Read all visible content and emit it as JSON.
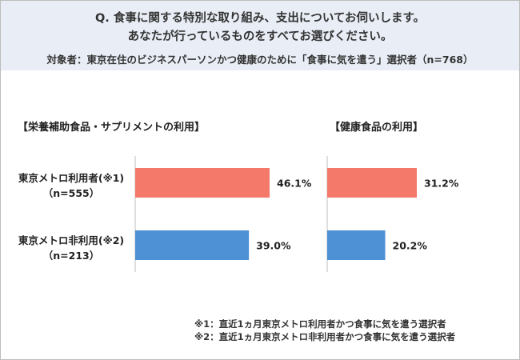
{
  "header": {
    "question_line1": "Q. 食事に関する特別な取り組み、支出についてお伺いします。",
    "question_line2": "あなたが行っているものをすべてお選びください。",
    "target": "対象者：東京在住のビジネスパーソンかつ健康のために「食事に気を遣う」選択者（n=768）"
  },
  "rows": [
    {
      "label": "東京メトロ利用者(※1)",
      "n": "（n=555）"
    },
    {
      "label": "東京メトロ非利用(※2)",
      "n": "（n=213）"
    }
  ],
  "notes": [
    "※1：直近1ヵ月東京メトロ利用者かつ食事に気を遣う選択者",
    "※2：直近1ヵ月東京メトロ非利用者かつ食事に気を遣う選択者"
  ],
  "colors": {
    "series1": "#f4796b",
    "series2": "#4e91d4",
    "header_bg": "#e9eef6"
  },
  "chart_data": [
    {
      "type": "bar",
      "title": "【栄養補助食品・サプリメントの利用】",
      "categories": [
        "東京メトロ利用者(※1)",
        "東京メトロ非利用(※2)"
      ],
      "values": [
        46.1,
        39.0
      ],
      "value_labels": [
        "46.1%",
        "39.0%"
      ],
      "xlim": [
        0,
        100
      ]
    },
    {
      "type": "bar",
      "title": "【健康食品の利用】",
      "categories": [
        "東京メトロ利用者(※1)",
        "東京メトロ非利用(※2)"
      ],
      "values": [
        31.2,
        20.2
      ],
      "value_labels": [
        "31.2%",
        "20.2%"
      ],
      "xlim": [
        0,
        100
      ]
    }
  ]
}
